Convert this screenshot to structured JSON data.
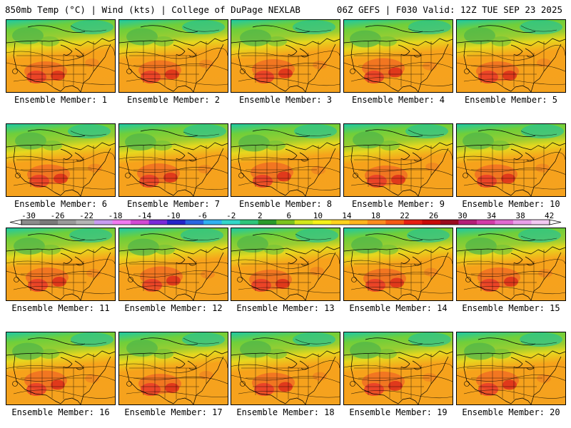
{
  "header": {
    "left": "850mb Temp (°C) | Wind (kts) | College of DuPage NEXLAB",
    "right": "06Z GEFS | F030 Valid: 12Z TUE SEP 23 2025"
  },
  "panels": [
    {
      "label": "Ensemble Member: 1"
    },
    {
      "label": "Ensemble Member: 2"
    },
    {
      "label": "Ensemble Member: 3"
    },
    {
      "label": "Ensemble Member: 4"
    },
    {
      "label": "Ensemble Member: 5"
    },
    {
      "label": "Ensemble Member: 6"
    },
    {
      "label": "Ensemble Member: 7"
    },
    {
      "label": "Ensemble Member: 8"
    },
    {
      "label": "Ensemble Member: 9"
    },
    {
      "label": "Ensemble Member: 10"
    },
    {
      "label": "Ensemble Member: 11"
    },
    {
      "label": "Ensemble Member: 12"
    },
    {
      "label": "Ensemble Member: 13"
    },
    {
      "label": "Ensemble Member: 14"
    },
    {
      "label": "Ensemble Member: 15"
    },
    {
      "label": "Ensemble Member: 16"
    },
    {
      "label": "Ensemble Member: 17"
    },
    {
      "label": "Ensemble Member: 18"
    },
    {
      "label": "Ensemble Member: 19"
    },
    {
      "label": "Ensemble Member: 20"
    }
  ],
  "colorbar": {
    "ticks": [
      "-30",
      "-26",
      "-22",
      "-18",
      "-14",
      "-10",
      "-6",
      "-2",
      "2",
      "6",
      "10",
      "14",
      "18",
      "22",
      "26",
      "30",
      "34",
      "38",
      "42"
    ],
    "colors": [
      "#8c8c8c",
      "#7a7a7a",
      "#9a9a9a",
      "#b4b4b4",
      "#c79cf0",
      "#f07af0",
      "#d24ad2",
      "#7a2ad8",
      "#2424c8",
      "#2a66e0",
      "#30b0f0",
      "#33d6c8",
      "#2ec47a",
      "#2a9a2a",
      "#7cc21e",
      "#d2e61c",
      "#f5f01a",
      "#ffd21e",
      "#ffb41e",
      "#fb8c1e",
      "#f55a14",
      "#e61e14",
      "#c80a0a",
      "#9a0a1e",
      "#b41e78",
      "#d23ca8",
      "#e06ad0",
      "#e8a0e8",
      "#f2c8f2"
    ]
  },
  "colors": {
    "warm": "#f7a21b",
    "hot": "#e8342a",
    "cool": "#9acd32",
    "cold": "#1ec9a4"
  }
}
